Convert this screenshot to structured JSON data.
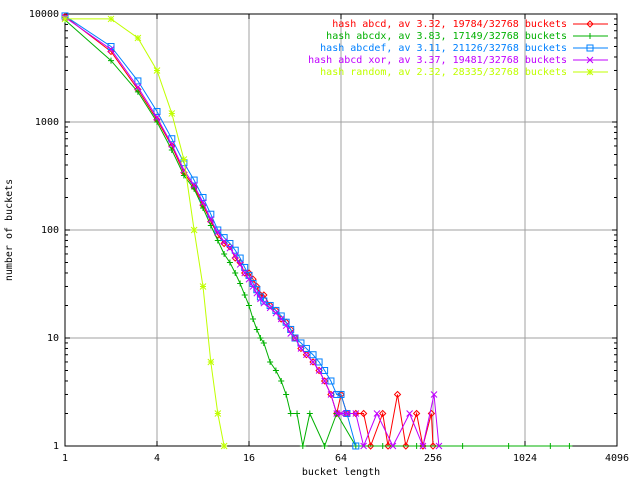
{
  "chart_data": {
    "type": "line",
    "xlabel": "bucket length",
    "ylabel": "number of buckets",
    "xscale": "log2",
    "yscale": "log10",
    "xlim": [
      1,
      4096
    ],
    "ylim": [
      1,
      10000
    ],
    "x_ticks": [
      "1",
      "4",
      "16",
      "64",
      "256",
      "1024",
      "4096"
    ],
    "y_ticks": [
      "1",
      "10",
      "100",
      "1000",
      "10000"
    ],
    "grid": true,
    "legend_position": "top-right",
    "series": [
      {
        "name": "hash abcd, av 3.32, 19784/32768 buckets",
        "color": "#ff0000",
        "marker": "diamond",
        "points": [
          [
            1,
            9500
          ],
          [
            2,
            4500
          ],
          [
            3,
            2000
          ],
          [
            4,
            1050
          ],
          [
            5,
            600
          ],
          [
            6,
            340
          ],
          [
            7,
            250
          ],
          [
            8,
            170
          ],
          [
            9,
            120
          ],
          [
            10,
            90
          ],
          [
            11,
            75
          ],
          [
            12,
            70
          ],
          [
            13,
            55
          ],
          [
            14,
            50
          ],
          [
            15,
            40
          ],
          [
            16,
            40
          ],
          [
            17,
            35
          ],
          [
            18,
            30
          ],
          [
            19,
            25
          ],
          [
            20,
            25
          ],
          [
            22,
            20
          ],
          [
            24,
            18
          ],
          [
            26,
            15
          ],
          [
            28,
            14
          ],
          [
            30,
            12
          ],
          [
            32,
            10
          ],
          [
            35,
            8
          ],
          [
            38,
            7
          ],
          [
            42,
            6
          ],
          [
            46,
            5
          ],
          [
            50,
            4
          ],
          [
            55,
            3
          ],
          [
            60,
            2
          ],
          [
            64,
            3
          ],
          [
            70,
            2
          ],
          [
            80,
            2
          ],
          [
            90,
            2
          ],
          [
            100,
            1
          ],
          [
            120,
            2
          ],
          [
            130,
            1
          ],
          [
            150,
            3
          ],
          [
            170,
            1
          ],
          [
            200,
            2
          ],
          [
            220,
            1
          ],
          [
            250,
            2
          ],
          [
            256,
            1
          ]
        ]
      },
      {
        "name": "hash abcdx, av 3.83, 17149/32768 buckets",
        "color": "#00b000",
        "marker": "plus",
        "points": [
          [
            1,
            8800
          ],
          [
            2,
            3700
          ],
          [
            3,
            1900
          ],
          [
            4,
            1000
          ],
          [
            5,
            550
          ],
          [
            6,
            320
          ],
          [
            7,
            240
          ],
          [
            8,
            160
          ],
          [
            9,
            110
          ],
          [
            10,
            80
          ],
          [
            11,
            60
          ],
          [
            12,
            50
          ],
          [
            13,
            40
          ],
          [
            14,
            32
          ],
          [
            15,
            25
          ],
          [
            16,
            20
          ],
          [
            17,
            15
          ],
          [
            18,
            12
          ],
          [
            19,
            10
          ],
          [
            20,
            9
          ],
          [
            22,
            6
          ],
          [
            24,
            5
          ],
          [
            26,
            4
          ],
          [
            28,
            3
          ],
          [
            30,
            2
          ],
          [
            33,
            2
          ],
          [
            36,
            1
          ],
          [
            40,
            2
          ],
          [
            50,
            1
          ],
          [
            60,
            2
          ],
          [
            80,
            1
          ],
          [
            120,
            1
          ],
          [
            200,
            1
          ],
          [
            400,
            1
          ],
          [
            800,
            1
          ],
          [
            1500,
            1
          ],
          [
            2000,
            1
          ]
        ]
      },
      {
        "name": "hash abcdef, av 3.11, 21126/32768 buckets",
        "color": "#0080ff",
        "marker": "square",
        "points": [
          [
            1,
            9600
          ],
          [
            2,
            5000
          ],
          [
            3,
            2400
          ],
          [
            4,
            1250
          ],
          [
            5,
            700
          ],
          [
            6,
            420
          ],
          [
            7,
            290
          ],
          [
            8,
            200
          ],
          [
            9,
            140
          ],
          [
            10,
            100
          ],
          [
            11,
            85
          ],
          [
            12,
            75
          ],
          [
            13,
            65
          ],
          [
            14,
            55
          ],
          [
            15,
            45
          ],
          [
            16,
            38
          ],
          [
            17,
            32
          ],
          [
            18,
            28
          ],
          [
            19,
            24
          ],
          [
            20,
            22
          ],
          [
            22,
            20
          ],
          [
            24,
            18
          ],
          [
            26,
            16
          ],
          [
            28,
            14
          ],
          [
            30,
            12
          ],
          [
            32,
            10
          ],
          [
            35,
            9
          ],
          [
            38,
            8
          ],
          [
            42,
            7
          ],
          [
            46,
            6
          ],
          [
            50,
            5
          ],
          [
            55,
            4
          ],
          [
            60,
            3
          ],
          [
            64,
            3
          ],
          [
            70,
            2
          ],
          [
            80,
            1
          ]
        ]
      },
      {
        "name": "hash abcd xor, av 3.37, 19481/32768 buckets",
        "color": "#c000ff",
        "marker": "cross",
        "points": [
          [
            1,
            9300
          ],
          [
            2,
            4700
          ],
          [
            3,
            2100
          ],
          [
            4,
            1100
          ],
          [
            5,
            620
          ],
          [
            6,
            360
          ],
          [
            7,
            260
          ],
          [
            8,
            180
          ],
          [
            9,
            125
          ],
          [
            10,
            95
          ],
          [
            11,
            78
          ],
          [
            12,
            68
          ],
          [
            13,
            58
          ],
          [
            14,
            48
          ],
          [
            15,
            40
          ],
          [
            16,
            35
          ],
          [
            17,
            30
          ],
          [
            18,
            26
          ],
          [
            19,
            23
          ],
          [
            20,
            21
          ],
          [
            22,
            19
          ],
          [
            24,
            17
          ],
          [
            26,
            15
          ],
          [
            28,
            13
          ],
          [
            30,
            11
          ],
          [
            32,
            10
          ],
          [
            35,
            8
          ],
          [
            38,
            7
          ],
          [
            42,
            6
          ],
          [
            46,
            5
          ],
          [
            50,
            4
          ],
          [
            55,
            3
          ],
          [
            60,
            2
          ],
          [
            64,
            2
          ],
          [
            70,
            2
          ],
          [
            80,
            2
          ],
          [
            90,
            1
          ],
          [
            110,
            2
          ],
          [
            140,
            1
          ],
          [
            180,
            2
          ],
          [
            220,
            1
          ],
          [
            260,
            3
          ],
          [
            280,
            1
          ]
        ]
      },
      {
        "name": "hash random, av 2.32, 28335/32768 buckets",
        "color": "#c0ff00",
        "marker": "star",
        "points": [
          [
            1,
            9000
          ],
          [
            2,
            9000
          ],
          [
            3,
            6000
          ],
          [
            4,
            3000
          ],
          [
            5,
            1200
          ],
          [
            6,
            450
          ],
          [
            7,
            100
          ],
          [
            8,
            30
          ],
          [
            9,
            6
          ],
          [
            10,
            2
          ],
          [
            11,
            1
          ]
        ]
      }
    ]
  }
}
